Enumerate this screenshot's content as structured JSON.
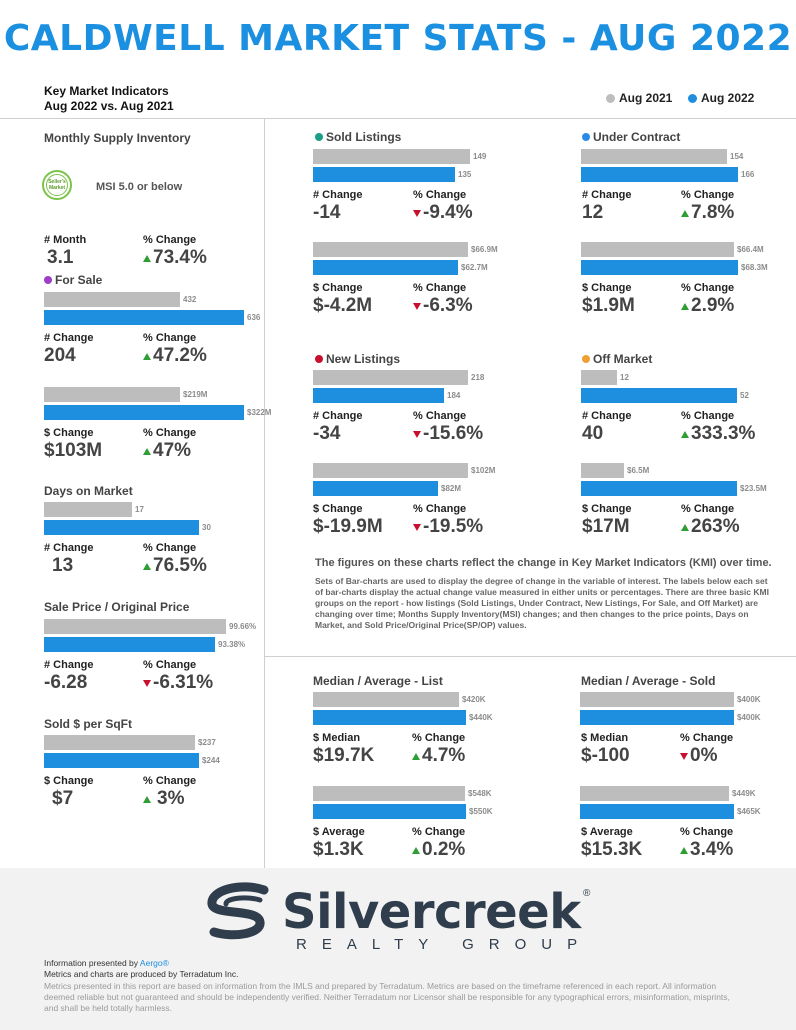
{
  "title": "CALDWELL MARKET STATS - AUG 2022",
  "kmi": {
    "line1": "Key Market Indicators",
    "line2": "Aug 2022 vs. Aug 2021"
  },
  "legend": {
    "prev": "Aug 2021",
    "curr": "Aug 2022",
    "prev_color": "#bdbdbd",
    "curr_color": "#1e8fde"
  },
  "msi": {
    "title": "Monthly Supply Inventory",
    "badge": "Seller's Market",
    "text": "MSI 5.0 or below",
    "label1": "# Month",
    "val1": "3.1",
    "label2": "% Change",
    "val2": "73.4%"
  },
  "for_sale": {
    "title": "For Sale",
    "dot_color": "#9b3fc9",
    "c1": {
      "prev": "432",
      "curr": "636",
      "prev_v": 432,
      "curr_v": 636
    },
    "l1": "# Change",
    "v1": "204",
    "l2": "% Change",
    "v2": "47.2%",
    "c2": {
      "prev": "$219M",
      "curr": "$322M",
      "prev_v": 219,
      "curr_v": 322
    },
    "l3": "$ Change",
    "v3": "$103M",
    "l4": "% Change",
    "v4": "47%"
  },
  "dom": {
    "title": "Days on Market",
    "c1": {
      "prev": "17",
      "curr": "30",
      "prev_v": 17,
      "curr_v": 30
    },
    "l1": "# Change",
    "v1": "13",
    "l2": "% Change",
    "v2": "76.5%"
  },
  "sp_op": {
    "title": "Sale Price / Original Price",
    "c1": {
      "prev": "99.66%",
      "curr": "93.38%",
      "prev_v": 99.66,
      "curr_v": 93.38
    },
    "l1": "# Change",
    "v1": "-6.28",
    "l2": "% Change",
    "v2": "-6.31%"
  },
  "sqft": {
    "title": "Sold $ per SqFt",
    "c1": {
      "prev": "$237",
      "curr": "$244",
      "prev_v": 237,
      "curr_v": 244
    },
    "l1": "$ Change",
    "v1": "$7",
    "l2": "% Change",
    "v2": "3%"
  },
  "sold": {
    "title": "Sold Listings",
    "dot_color": "#1a9e86",
    "c1": {
      "prev": "149",
      "curr": "135",
      "prev_v": 149,
      "curr_v": 135
    },
    "l1": "# Change",
    "v1": "-14",
    "l2": "% Change",
    "v2": "-9.4%",
    "c2": {
      "prev": "$66.9M",
      "curr": "$62.7M",
      "prev_v": 66.9,
      "curr_v": 62.7
    },
    "l3": "$ Change",
    "v3": "$-4.2M",
    "l4": "% Change",
    "v4": "-6.3%"
  },
  "uc": {
    "title": "Under Contract",
    "dot_color": "#2a8be6",
    "c1": {
      "prev": "154",
      "curr": "166",
      "prev_v": 154,
      "curr_v": 166
    },
    "l1": "# Change",
    "v1": "12",
    "l2": "% Change",
    "v2": "7.8%",
    "c2": {
      "prev": "$66.4M",
      "curr": "$68.3M",
      "prev_v": 66.4,
      "curr_v": 68.3
    },
    "l3": "$ Change",
    "v3": "$1.9M",
    "l4": "% Change",
    "v4": "2.9%"
  },
  "nl": {
    "title": "New Listings",
    "dot_color": "#c8102e",
    "c1": {
      "prev": "218",
      "curr": "184",
      "prev_v": 218,
      "curr_v": 184
    },
    "l1": "# Change",
    "v1": "-34",
    "l2": "% Change",
    "v2": "-15.6%",
    "c2": {
      "prev": "$102M",
      "curr": "$82M",
      "prev_v": 102,
      "curr_v": 82
    },
    "l3": "$ Change",
    "v3": "$-19.9M",
    "l4": "% Change",
    "v4": "-19.5%"
  },
  "om": {
    "title": "Off Market",
    "dot_color": "#f0a030",
    "c1": {
      "prev": "12",
      "curr": "52",
      "prev_v": 12,
      "curr_v": 52
    },
    "l1": "# Change",
    "v1": "40",
    "l2": "% Change",
    "v2": "333.3%",
    "c2": {
      "prev": "$6.5M",
      "curr": "$23.5M",
      "prev_v": 6.5,
      "curr_v": 23.5
    },
    "l3": "$ Change",
    "v3": "$17M",
    "l4": "% Change",
    "v4": "263%"
  },
  "note": {
    "bold": "The figures on these charts reflect the change in Key Market Indicators (KMI) over time.",
    "body": "Sets of Bar-charts are used to display the degree of change in the variable of interest. The labels below each set of bar-charts display the actual change value measured in either units or percentages. There are three basic KMI groups on the report - how listings (Sold Listings, Under Contract, New Listings, For Sale, and Off Market) are changing over time; Months Supply Inventory(MSI) changes; and then changes to the price points, Days on Market, and Sold Price/Original Price(SP/OP) values."
  },
  "list": {
    "title": "Median / Average - List",
    "c1": {
      "prev": "$420K",
      "curr": "$440K",
      "prev_v": 420,
      "curr_v": 440
    },
    "l1": "$ Median",
    "v1": "$19.7K",
    "l2": "% Change",
    "v2": "4.7%",
    "c2": {
      "prev": "$548K",
      "curr": "$550K",
      "prev_v": 548,
      "curr_v": 550
    },
    "l3": "$ Average",
    "v3": "$1.3K",
    "l4": "% Change",
    "v4": "0.2%"
  },
  "soldp": {
    "title": "Median / Average - Sold",
    "c1": {
      "prev": "$400K",
      "curr": "$400K",
      "prev_v": 400,
      "curr_v": 400
    },
    "l1": "$ Median",
    "v1": "$-100",
    "l2": "% Change",
    "v2": "0%",
    "c2": {
      "prev": "$449K",
      "curr": "$465K",
      "prev_v": 449,
      "curr_v": 465
    },
    "l3": "$ Average",
    "v3": "$15.3K",
    "l4": "% Change",
    "v4": "3.4%"
  },
  "logo": {
    "name": "Silvercreek",
    "reg": "®",
    "sub": "REALTY GROUP"
  },
  "footer": {
    "presented_prefix": "Information presented by ",
    "presented_brand": "Aergo®",
    "produced": "Metrics and charts are produced by Terradatum Inc.",
    "disclaimer": "Metrics presented in this report are based on information from the IMLS and prepared by Terradatum. Metrics are based on the timeframe referenced in each report. All information deemed reliable but not guaranteed and should be independently verified. Neither Terradatum nor Licensor shall be responsible for any typographical errors, misinformation, misprints, and shall be held totally harmless."
  }
}
